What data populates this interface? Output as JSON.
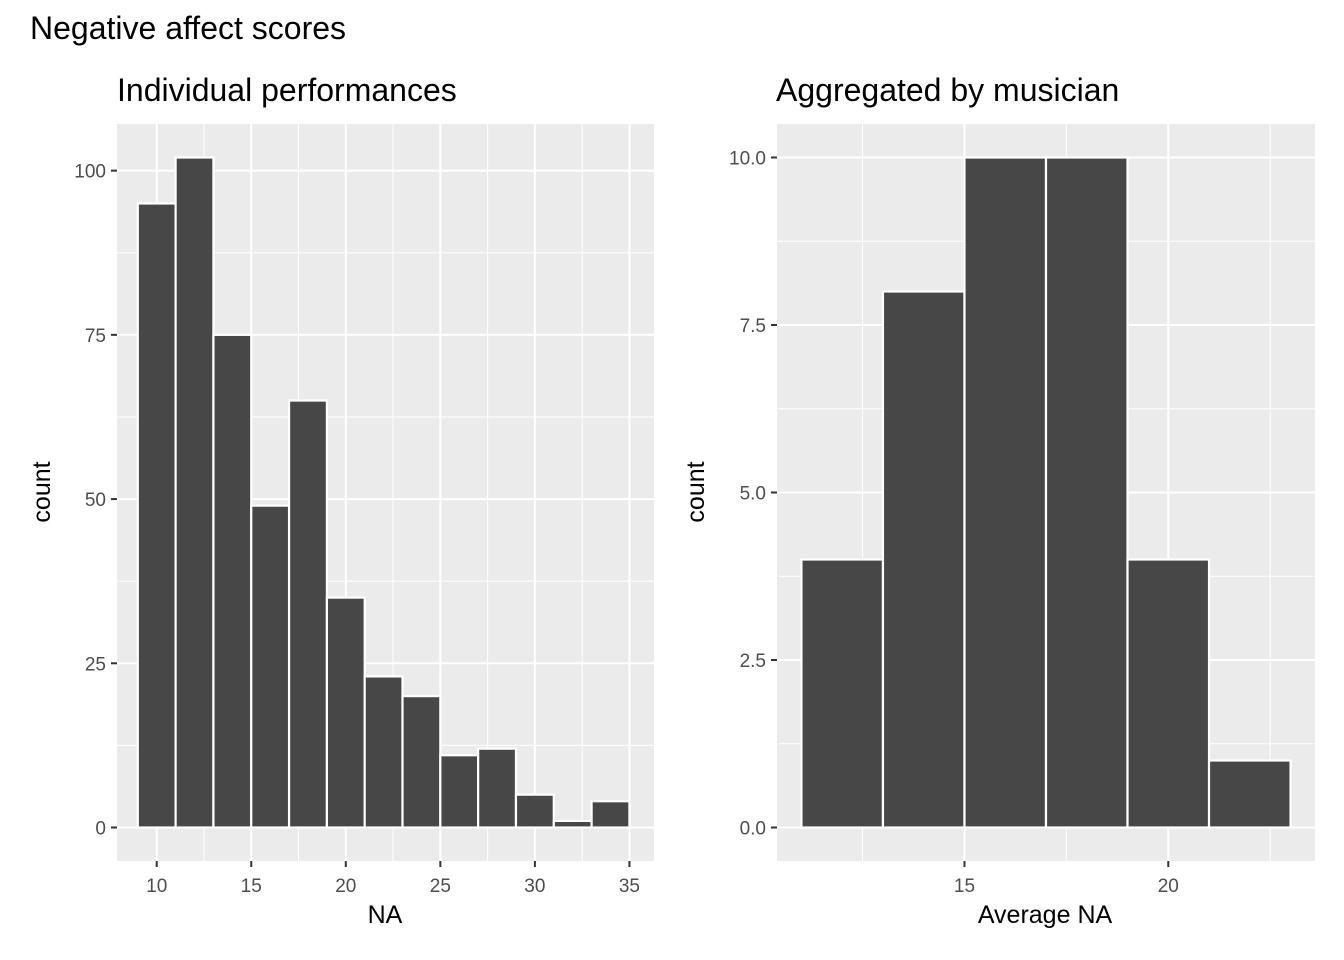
{
  "figure": {
    "title": "Negative affect scores",
    "bar_fill": "#474747",
    "bar_outline": "#ffffff",
    "panel_background": "#ebebeb"
  },
  "chart_data": [
    {
      "type": "bar",
      "subtype": "histogram",
      "title": "Individual performances",
      "xlabel": "NA",
      "ylabel": "count",
      "xlim": [
        7.9,
        36.3
      ],
      "ylim": [
        -5.1,
        107.1
      ],
      "xticks": [
        10,
        15,
        20,
        25,
        30,
        35
      ],
      "yticks": [
        0,
        25,
        50,
        75,
        100
      ],
      "ytick_labels": [
        "0",
        "25",
        "50",
        "75",
        "100"
      ],
      "bin_width": 2,
      "bins": [
        {
          "x0": 9,
          "x1": 11,
          "count": 95
        },
        {
          "x0": 11,
          "x1": 13,
          "count": 102
        },
        {
          "x0": 13,
          "x1": 15,
          "count": 75
        },
        {
          "x0": 15,
          "x1": 17,
          "count": 49
        },
        {
          "x0": 17,
          "x1": 19,
          "count": 65
        },
        {
          "x0": 19,
          "x1": 21,
          "count": 35
        },
        {
          "x0": 21,
          "x1": 23,
          "count": 23
        },
        {
          "x0": 23,
          "x1": 25,
          "count": 20
        },
        {
          "x0": 25,
          "x1": 27,
          "count": 11
        },
        {
          "x0": 27,
          "x1": 29,
          "count": 12
        },
        {
          "x0": 29,
          "x1": 31,
          "count": 5
        },
        {
          "x0": 31,
          "x1": 33,
          "count": 1
        },
        {
          "x0": 33,
          "x1": 35,
          "count": 4
        }
      ],
      "grid": true
    },
    {
      "type": "bar",
      "subtype": "histogram",
      "title": "Aggregated by musician",
      "xlabel": "Average NA",
      "ylabel": "count",
      "xlim": [
        10.4,
        23.6
      ],
      "ylim": [
        -0.5,
        10.5
      ],
      "xticks": [
        15,
        20
      ],
      "yticks": [
        0,
        2.5,
        5,
        7.5,
        10
      ],
      "ytick_labels": [
        "0.0",
        "2.5",
        "5.0",
        "7.5",
        "10.0"
      ],
      "bin_width": 2,
      "bins": [
        {
          "x0": 11,
          "x1": 13,
          "count": 4
        },
        {
          "x0": 13,
          "x1": 15,
          "count": 8
        },
        {
          "x0": 15,
          "x1": 17,
          "count": 10
        },
        {
          "x0": 17,
          "x1": 19,
          "count": 10
        },
        {
          "x0": 19,
          "x1": 21,
          "count": 4
        },
        {
          "x0": 21,
          "x1": 23,
          "count": 1
        }
      ],
      "grid": true
    }
  ]
}
